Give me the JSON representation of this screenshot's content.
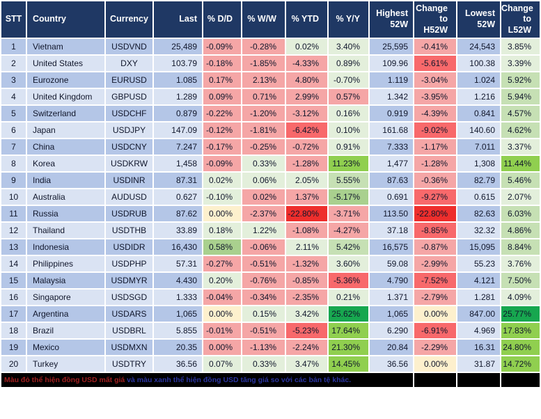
{
  "palette": {
    "p": "#f5a6a6",
    "r": "#f8696b",
    "rr": "#ee2e2c",
    "y": "#fdf0cd",
    "g1": "#e3efdb",
    "g2": "#c6e0b4",
    "gm": "#a9d08e",
    "g3": "#90cf4f",
    "g4": "#17a74f"
  },
  "theme": {
    "header_bg": "#1f3864",
    "header_text": "#ffffff",
    "row_odd_bg": "#b4c6e7",
    "row_even_bg": "#dae3f3",
    "footer_bg": "#000000"
  },
  "table": {
    "columns": [
      {
        "key": "stt",
        "label": "STT"
      },
      {
        "key": "country",
        "label": "Country"
      },
      {
        "key": "currency",
        "label": "Currency"
      },
      {
        "key": "last",
        "label": "Last"
      },
      {
        "key": "dd",
        "label": "% D/D"
      },
      {
        "key": "ww",
        "label": "% W/W"
      },
      {
        "key": "ytd",
        "label": "% YTD"
      },
      {
        "key": "yy",
        "label": "% Y/Y"
      },
      {
        "key": "high52w",
        "label": "Highest\n52W"
      },
      {
        "key": "chg_h52w",
        "label": "Change\nto\nH52W"
      },
      {
        "key": "low52w",
        "label": "Lowest\n52W"
      },
      {
        "key": "chg_l52w",
        "label": "Change\nto\nL52W"
      }
    ],
    "rows": [
      {
        "stt": "1",
        "country": "Vietnam",
        "currency": "USDVND",
        "last": "25,489",
        "dd": {
          "v": "-0.09%",
          "c": "p"
        },
        "ww": {
          "v": "-0.28%",
          "c": "p"
        },
        "ytd": {
          "v": "0.02%",
          "c": "g1"
        },
        "yy": {
          "v": "3.40%",
          "c": "g1"
        },
        "high52w": "25,595",
        "chg_h52w": {
          "v": "-0.41%",
          "c": "p"
        },
        "low52w": "24,543",
        "chg_l52w": {
          "v": "3.85%",
          "c": "g1"
        }
      },
      {
        "stt": "2",
        "country": "United States",
        "currency": "DXY",
        "last": "103.79",
        "dd": {
          "v": "-0.18%",
          "c": "p"
        },
        "ww": {
          "v": "-1.85%",
          "c": "p"
        },
        "ytd": {
          "v": "-4.33%",
          "c": "p"
        },
        "yy": {
          "v": "0.89%",
          "c": "g1"
        },
        "high52w": "109.96",
        "chg_h52w": {
          "v": "-5.61%",
          "c": "r"
        },
        "low52w": "100.38",
        "chg_l52w": {
          "v": "3.39%",
          "c": "g1"
        }
      },
      {
        "stt": "3",
        "country": "Eurozone",
        "currency": "EURUSD",
        "last": "1.085",
        "dd": {
          "v": "0.17%",
          "c": "p"
        },
        "ww": {
          "v": "2.13%",
          "c": "p"
        },
        "ytd": {
          "v": "4.80%",
          "c": "p"
        },
        "yy": {
          "v": "-0.70%",
          "c": "g1"
        },
        "high52w": "1.119",
        "chg_h52w": {
          "v": "-3.04%",
          "c": "p"
        },
        "low52w": "1.024",
        "chg_l52w": {
          "v": "5.92%",
          "c": "g2"
        }
      },
      {
        "stt": "4",
        "country": "United Kingdom",
        "currency": "GBPUSD",
        "last": "1.289",
        "dd": {
          "v": "0.09%",
          "c": "p"
        },
        "ww": {
          "v": "0.71%",
          "c": "p"
        },
        "ytd": {
          "v": "2.99%",
          "c": "p"
        },
        "yy": {
          "v": "0.57%",
          "c": "p"
        },
        "high52w": "1.342",
        "chg_h52w": {
          "v": "-3.95%",
          "c": "p"
        },
        "low52w": "1.216",
        "chg_l52w": {
          "v": "5.94%",
          "c": "g2"
        }
      },
      {
        "stt": "5",
        "country": "Switzerland",
        "currency": "USDCHF",
        "last": "0.879",
        "dd": {
          "v": "-0.22%",
          "c": "p"
        },
        "ww": {
          "v": "-1.20%",
          "c": "p"
        },
        "ytd": {
          "v": "-3.12%",
          "c": "p"
        },
        "yy": {
          "v": "0.16%",
          "c": "g1"
        },
        "high52w": "0.919",
        "chg_h52w": {
          "v": "-4.39%",
          "c": "p"
        },
        "low52w": "0.841",
        "chg_l52w": {
          "v": "4.57%",
          "c": "g2"
        }
      },
      {
        "stt": "6",
        "country": "Japan",
        "currency": "USDJPY",
        "last": "147.09",
        "dd": {
          "v": "-0.12%",
          "c": "p"
        },
        "ww": {
          "v": "-1.81%",
          "c": "p"
        },
        "ytd": {
          "v": "-6.42%",
          "c": "r"
        },
        "yy": {
          "v": "0.10%",
          "c": "g1"
        },
        "high52w": "161.68",
        "chg_h52w": {
          "v": "-9.02%",
          "c": "r"
        },
        "low52w": "140.60",
        "chg_l52w": {
          "v": "4.62%",
          "c": "g2"
        }
      },
      {
        "stt": "7",
        "country": "China",
        "currency": "USDCNY",
        "last": "7.247",
        "dd": {
          "v": "-0.17%",
          "c": "p"
        },
        "ww": {
          "v": "-0.25%",
          "c": "p"
        },
        "ytd": {
          "v": "-0.72%",
          "c": "p"
        },
        "yy": {
          "v": "0.91%",
          "c": "g1"
        },
        "high52w": "7.333",
        "chg_h52w": {
          "v": "-1.17%",
          "c": "p"
        },
        "low52w": "7.011",
        "chg_l52w": {
          "v": "3.37%",
          "c": "g1"
        }
      },
      {
        "stt": "8",
        "country": "Korea",
        "currency": "USDKRW",
        "last": "1,458",
        "dd": {
          "v": "-0.09%",
          "c": "p"
        },
        "ww": {
          "v": "0.33%",
          "c": "g1"
        },
        "ytd": {
          "v": "-1.28%",
          "c": "p"
        },
        "yy": {
          "v": "11.23%",
          "c": "g3"
        },
        "high52w": "1,477",
        "chg_h52w": {
          "v": "-1.28%",
          "c": "p"
        },
        "low52w": "1,308",
        "chg_l52w": {
          "v": "11.44%",
          "c": "g3"
        }
      },
      {
        "stt": "9",
        "country": "India",
        "currency": "USDINR",
        "last": "87.31",
        "dd": {
          "v": "0.02%",
          "c": "g1"
        },
        "ww": {
          "v": "0.06%",
          "c": "g1"
        },
        "ytd": {
          "v": "2.05%",
          "c": "g1"
        },
        "yy": {
          "v": "5.55%",
          "c": "g2"
        },
        "high52w": "87.63",
        "chg_h52w": {
          "v": "-0.36%",
          "c": "p"
        },
        "low52w": "82.79",
        "chg_l52w": {
          "v": "5.46%",
          "c": "g2"
        }
      },
      {
        "stt": "10",
        "country": "Australia",
        "currency": "AUDUSD",
        "last": "0.627",
        "dd": {
          "v": "-0.10%",
          "c": "g1"
        },
        "ww": {
          "v": "0.02%",
          "c": "p"
        },
        "ytd": {
          "v": "1.37%",
          "c": "p"
        },
        "yy": {
          "v": "-5.17%",
          "c": "gm"
        },
        "high52w": "0.691",
        "chg_h52w": {
          "v": "-9.27%",
          "c": "r"
        },
        "low52w": "0.615",
        "chg_l52w": {
          "v": "2.07%",
          "c": "g1"
        }
      },
      {
        "stt": "11",
        "country": "Russia",
        "currency": "USDRUB",
        "last": "87.62",
        "dd": {
          "v": "0.00%",
          "c": "y"
        },
        "ww": {
          "v": "-2.37%",
          "c": "p"
        },
        "ytd": {
          "v": "-22.80%",
          "c": "rr"
        },
        "yy": {
          "v": "-3.71%",
          "c": "p"
        },
        "high52w": "113.50",
        "chg_h52w": {
          "v": "-22.80%",
          "c": "rr"
        },
        "low52w": "82.63",
        "chg_l52w": {
          "v": "6.03%",
          "c": "g2"
        }
      },
      {
        "stt": "12",
        "country": "Thailand",
        "currency": "USDTHB",
        "last": "33.89",
        "dd": {
          "v": "0.18%",
          "c": "g1"
        },
        "ww": {
          "v": "1.22%",
          "c": "g1"
        },
        "ytd": {
          "v": "-1.08%",
          "c": "p"
        },
        "yy": {
          "v": "-4.27%",
          "c": "p"
        },
        "high52w": "37.18",
        "chg_h52w": {
          "v": "-8.85%",
          "c": "r"
        },
        "low52w": "32.32",
        "chg_l52w": {
          "v": "4.86%",
          "c": "g2"
        }
      },
      {
        "stt": "13",
        "country": "Indonesia",
        "currency": "USDIDR",
        "last": "16,430",
        "dd": {
          "v": "0.58%",
          "c": "gm"
        },
        "ww": {
          "v": "-0.06%",
          "c": "p"
        },
        "ytd": {
          "v": "2.11%",
          "c": "g1"
        },
        "yy": {
          "v": "5.42%",
          "c": "g2"
        },
        "high52w": "16,575",
        "chg_h52w": {
          "v": "-0.87%",
          "c": "p"
        },
        "low52w": "15,095",
        "chg_l52w": {
          "v": "8.84%",
          "c": "g2"
        }
      },
      {
        "stt": "14",
        "country": "Philippines",
        "currency": "USDPHP",
        "last": "57.31",
        "dd": {
          "v": "-0.27%",
          "c": "p"
        },
        "ww": {
          "v": "-0.51%",
          "c": "p"
        },
        "ytd": {
          "v": "-1.32%",
          "c": "p"
        },
        "yy": {
          "v": "3.60%",
          "c": "g1"
        },
        "high52w": "59.08",
        "chg_h52w": {
          "v": "-2.99%",
          "c": "p"
        },
        "low52w": "55.23",
        "chg_l52w": {
          "v": "3.76%",
          "c": "g1"
        }
      },
      {
        "stt": "15",
        "country": "Malaysia",
        "currency": "USDMYR",
        "last": "4.430",
        "dd": {
          "v": "0.20%",
          "c": "g1"
        },
        "ww": {
          "v": "-0.76%",
          "c": "p"
        },
        "ytd": {
          "v": "-0.85%",
          "c": "p"
        },
        "yy": {
          "v": "-5.36%",
          "c": "r"
        },
        "high52w": "4.790",
        "chg_h52w": {
          "v": "-7.52%",
          "c": "r"
        },
        "low52w": "4.121",
        "chg_l52w": {
          "v": "7.50%",
          "c": "g2"
        }
      },
      {
        "stt": "16",
        "country": "Singapore",
        "currency": "USDSGD",
        "last": "1.333",
        "dd": {
          "v": "-0.04%",
          "c": "p"
        },
        "ww": {
          "v": "-0.34%",
          "c": "p"
        },
        "ytd": {
          "v": "-2.35%",
          "c": "p"
        },
        "yy": {
          "v": "0.21%",
          "c": "g1"
        },
        "high52w": "1.371",
        "chg_h52w": {
          "v": "-2.79%",
          "c": "p"
        },
        "low52w": "1.281",
        "chg_l52w": {
          "v": "4.09%",
          "c": "g1"
        }
      },
      {
        "stt": "17",
        "country": "Argentina",
        "currency": "USDARS",
        "last": "1,065",
        "dd": {
          "v": "0.00%",
          "c": "y"
        },
        "ww": {
          "v": "0.15%",
          "c": "g1"
        },
        "ytd": {
          "v": "3.42%",
          "c": "g1"
        },
        "yy": {
          "v": "25.62%",
          "c": "g4"
        },
        "high52w": "1,065",
        "chg_h52w": {
          "v": "0.00%",
          "c": "y"
        },
        "low52w": "847.00",
        "chg_l52w": {
          "v": "25.77%",
          "c": "g4"
        }
      },
      {
        "stt": "18",
        "country": "Brazil",
        "currency": "USDBRL",
        "last": "5.855",
        "dd": {
          "v": "-0.01%",
          "c": "p"
        },
        "ww": {
          "v": "-0.51%",
          "c": "p"
        },
        "ytd": {
          "v": "-5.23%",
          "c": "r"
        },
        "yy": {
          "v": "17.64%",
          "c": "g3"
        },
        "high52w": "6.290",
        "chg_h52w": {
          "v": "-6.91%",
          "c": "r"
        },
        "low52w": "4.969",
        "chg_l52w": {
          "v": "17.83%",
          "c": "g3"
        }
      },
      {
        "stt": "19",
        "country": "Mexico",
        "currency": "USDMXN",
        "last": "20.35",
        "dd": {
          "v": "0.00%",
          "c": "p"
        },
        "ww": {
          "v": "-1.13%",
          "c": "p"
        },
        "ytd": {
          "v": "-2.24%",
          "c": "p"
        },
        "yy": {
          "v": "21.30%",
          "c": "g3"
        },
        "high52w": "20.84",
        "chg_h52w": {
          "v": "-2.29%",
          "c": "p"
        },
        "low52w": "16.31",
        "chg_l52w": {
          "v": "24.80%",
          "c": "g3"
        }
      },
      {
        "stt": "20",
        "country": "Turkey",
        "currency": "USDTRY",
        "last": "36.56",
        "dd": {
          "v": "0.07%",
          "c": "g1"
        },
        "ww": {
          "v": "0.33%",
          "c": "g1"
        },
        "ytd": {
          "v": "3.47%",
          "c": "g1"
        },
        "yy": {
          "v": "14.45%",
          "c": "g3"
        },
        "high52w": "36.56",
        "chg_h52w": {
          "v": "0.00%",
          "c": "y"
        },
        "low52w": "31.87",
        "chg_l52w": {
          "v": "14.72%",
          "c": "g3"
        }
      }
    ]
  },
  "footer": {
    "note_red": "Màu đỏ thể hiện đồng USD mất giá",
    "note_blue": "và màu xanh thể hiện đồng USD tăng giá so với các bản tệ khác."
  }
}
